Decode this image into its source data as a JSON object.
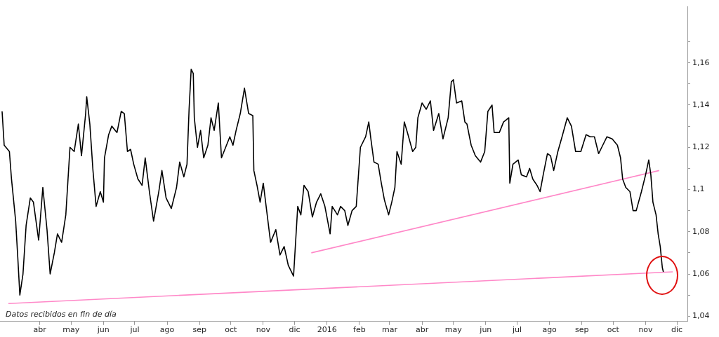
{
  "chart_data": {
    "type": "line",
    "annotations": [
      "Datos recibidos en fin de día"
    ],
    "xlim": [
      "2015-02-22",
      "2016-12-11"
    ],
    "xticks": [
      {
        "value": "2015-04-01",
        "label": "abr"
      },
      {
        "value": "2015-05-01",
        "label": "may"
      },
      {
        "value": "2015-06-01",
        "label": "jun"
      },
      {
        "value": "2015-07-01",
        "label": "jul"
      },
      {
        "value": "2015-08-01",
        "label": "ago"
      },
      {
        "value": "2015-09-01",
        "label": "sep"
      },
      {
        "value": "2015-10-01",
        "label": "oct"
      },
      {
        "value": "2015-11-01",
        "label": "nov"
      },
      {
        "value": "2015-12-01",
        "label": "dic"
      },
      {
        "value": "2016-01-01",
        "label": "2016"
      },
      {
        "value": "2016-02-01",
        "label": "feb"
      },
      {
        "value": "2016-03-01",
        "label": "mar"
      },
      {
        "value": "2016-04-01",
        "label": "abr"
      },
      {
        "value": "2016-05-01",
        "label": "may"
      },
      {
        "value": "2016-06-01",
        "label": "jun"
      },
      {
        "value": "2016-07-01",
        "label": "jul"
      },
      {
        "value": "2016-08-01",
        "label": "ago"
      },
      {
        "value": "2016-09-01",
        "label": "sep"
      },
      {
        "value": "2016-10-01",
        "label": "oct"
      },
      {
        "value": "2016-11-01",
        "label": "nov"
      },
      {
        "value": "2016-12-01",
        "label": "dic"
      }
    ],
    "ylim": [
      1.0375,
      1.1866
    ],
    "yticks": [
      {
        "value": 1.04,
        "label": "1,04"
      },
      {
        "value": 1.05,
        "label": null
      },
      {
        "value": 1.06,
        "label": "1,06"
      },
      {
        "value": 1.07,
        "label": null
      },
      {
        "value": 1.08,
        "label": "1,08"
      },
      {
        "value": 1.09,
        "label": null
      },
      {
        "value": 1.1,
        "label": "1,1"
      },
      {
        "value": 1.11,
        "label": null
      },
      {
        "value": 1.12,
        "label": "1,12"
      },
      {
        "value": 1.13,
        "label": null
      },
      {
        "value": 1.14,
        "label": "1,14"
      },
      {
        "value": 1.15,
        "label": null
      },
      {
        "value": 1.16,
        "label": "1,16"
      },
      {
        "value": 1.17,
        "label": null
      }
    ],
    "marker": "none",
    "legend": false,
    "series": [
      {
        "color": "#000000",
        "x": [
          "2015-02-24",
          "2015-02-26",
          "2015-03-03",
          "2015-03-05",
          "2015-03-09",
          "2015-03-11",
          "2015-03-13",
          "2015-03-16",
          "2015-03-19",
          "2015-03-23",
          "2015-03-26",
          "2015-03-31",
          "2015-04-04",
          "2015-04-08",
          "2015-04-11",
          "2015-04-15",
          "2015-04-18",
          "2015-04-22",
          "2015-04-26",
          "2015-04-30",
          "2015-05-04",
          "2015-05-08",
          "2015-05-11",
          "2015-05-15",
          "2015-05-16",
          "2015-05-19",
          "2015-05-22",
          "2015-05-25",
          "2015-05-29",
          "2015-06-01",
          "2015-06-02",
          "2015-06-06",
          "2015-06-09",
          "2015-06-14",
          "2015-06-18",
          "2015-06-21",
          "2015-06-24",
          "2015-06-27",
          "2015-06-30",
          "2015-07-04",
          "2015-07-08",
          "2015-07-11",
          "2015-07-15",
          "2015-07-19",
          "2015-07-24",
          "2015-07-27",
          "2015-07-31",
          "2015-08-05",
          "2015-08-10",
          "2015-08-13",
          "2015-08-17",
          "2015-08-20",
          "2015-08-22",
          "2015-08-24",
          "2015-08-26",
          "2015-08-27",
          "2015-08-30",
          "2015-09-02",
          "2015-09-05",
          "2015-09-09",
          "2015-09-12",
          "2015-09-15",
          "2015-09-19",
          "2015-09-22",
          "2015-09-26",
          "2015-09-30",
          "2015-10-03",
          "2015-10-06",
          "2015-10-10",
          "2015-10-14",
          "2015-10-18",
          "2015-10-22",
          "2015-10-23",
          "2015-10-26",
          "2015-10-29",
          "2015-11-01",
          "2015-11-05",
          "2015-11-08",
          "2015-11-13",
          "2015-11-17",
          "2015-11-21",
          "2015-11-25",
          "2015-11-30",
          "2015-12-04",
          "2015-12-07",
          "2015-12-10",
          "2015-12-14",
          "2015-12-18",
          "2015-12-22",
          "2015-12-26",
          "2015-12-30",
          "2016-01-04",
          "2016-01-06",
          "2016-01-11",
          "2016-01-14",
          "2016-01-18",
          "2016-01-21",
          "2016-01-25",
          "2016-01-29",
          "2016-02-02",
          "2016-02-07",
          "2016-02-10",
          "2016-02-12",
          "2016-02-15",
          "2016-02-19",
          "2016-02-22",
          "2016-02-25",
          "2016-02-29",
          "2016-03-03",
          "2016-03-06",
          "2016-03-08",
          "2016-03-12",
          "2016-03-15",
          "2016-03-18",
          "2016-03-23",
          "2016-03-26",
          "2016-03-28",
          "2016-04-01",
          "2016-04-05",
          "2016-04-09",
          "2016-04-12",
          "2016-04-17",
          "2016-04-21",
          "2016-04-26",
          "2016-04-29",
          "2016-05-01",
          "2016-05-04",
          "2016-05-09",
          "2016-05-12",
          "2016-05-14",
          "2016-05-18",
          "2016-05-22",
          "2016-05-27",
          "2016-05-31",
          "2016-06-03",
          "2016-06-07",
          "2016-06-09",
          "2016-06-14",
          "2016-06-18",
          "2016-06-23",
          "2016-06-24",
          "2016-06-27",
          "2016-07-02",
          "2016-07-05",
          "2016-07-10",
          "2016-07-13",
          "2016-07-16",
          "2016-07-20",
          "2016-07-23",
          "2016-07-26",
          "2016-07-30",
          "2016-08-02",
          "2016-08-05",
          "2016-08-09",
          "2016-08-13",
          "2016-08-18",
          "2016-08-22",
          "2016-08-26",
          "2016-08-31",
          "2016-09-05",
          "2016-09-09",
          "2016-09-13",
          "2016-09-17",
          "2016-09-20",
          "2016-09-25",
          "2016-09-30",
          "2016-10-05",
          "2016-10-08",
          "2016-10-10",
          "2016-10-13",
          "2016-10-17",
          "2016-10-20",
          "2016-10-23",
          "2016-10-28",
          "2016-11-01",
          "2016-11-04",
          "2016-11-06",
          "2016-11-08",
          "2016-11-11",
          "2016-11-13",
          "2016-11-15",
          "2016-11-17",
          "2016-11-18"
        ],
        "values": [
          1.137,
          1.121,
          1.118,
          1.105,
          1.085,
          1.068,
          1.05,
          1.06,
          1.083,
          1.096,
          1.094,
          1.076,
          1.101,
          1.081,
          1.06,
          1.07,
          1.079,
          1.075,
          1.088,
          1.12,
          1.118,
          1.131,
          1.116,
          1.136,
          1.144,
          1.131,
          1.109,
          1.092,
          1.099,
          1.094,
          1.115,
          1.126,
          1.13,
          1.127,
          1.137,
          1.136,
          1.118,
          1.119,
          1.112,
          1.105,
          1.102,
          1.115,
          1.099,
          1.085,
          1.099,
          1.109,
          1.096,
          1.091,
          1.101,
          1.113,
          1.106,
          1.112,
          1.138,
          1.157,
          1.155,
          1.134,
          1.12,
          1.128,
          1.115,
          1.121,
          1.134,
          1.128,
          1.141,
          1.115,
          1.12,
          1.125,
          1.121,
          1.128,
          1.136,
          1.148,
          1.136,
          1.135,
          1.109,
          1.102,
          1.094,
          1.103,
          1.087,
          1.075,
          1.081,
          1.069,
          1.073,
          1.064,
          1.059,
          1.092,
          1.088,
          1.102,
          1.099,
          1.087,
          1.094,
          1.098,
          1.092,
          1.079,
          1.092,
          1.088,
          1.092,
          1.09,
          1.083,
          1.09,
          1.092,
          1.12,
          1.125,
          1.132,
          1.124,
          1.113,
          1.112,
          1.103,
          1.095,
          1.088,
          1.094,
          1.101,
          1.118,
          1.112,
          1.132,
          1.127,
          1.118,
          1.12,
          1.134,
          1.141,
          1.138,
          1.142,
          1.128,
          1.136,
          1.124,
          1.134,
          1.151,
          1.152,
          1.141,
          1.142,
          1.132,
          1.131,
          1.121,
          1.116,
          1.113,
          1.118,
          1.137,
          1.14,
          1.127,
          1.127,
          1.132,
          1.134,
          1.103,
          1.112,
          1.114,
          1.107,
          1.106,
          1.11,
          1.105,
          1.102,
          1.099,
          1.107,
          1.117,
          1.116,
          1.109,
          1.118,
          1.125,
          1.134,
          1.13,
          1.118,
          1.118,
          1.126,
          1.125,
          1.125,
          1.117,
          1.12,
          1.125,
          1.124,
          1.121,
          1.115,
          1.105,
          1.101,
          1.099,
          1.09,
          1.09,
          1.099,
          1.107,
          1.114,
          1.107,
          1.094,
          1.088,
          1.079,
          1.073,
          1.063,
          1.061
        ]
      },
      {
        "color": "#ff88c8",
        "x": [
          "2015-03-02",
          "2016-11-27"
        ],
        "values": [
          1.046,
          1.061
        ]
      },
      {
        "color": "#ff88c8",
        "x": [
          "2015-12-17",
          "2016-11-14"
        ],
        "values": [
          1.07,
          1.109
        ]
      }
    ]
  }
}
